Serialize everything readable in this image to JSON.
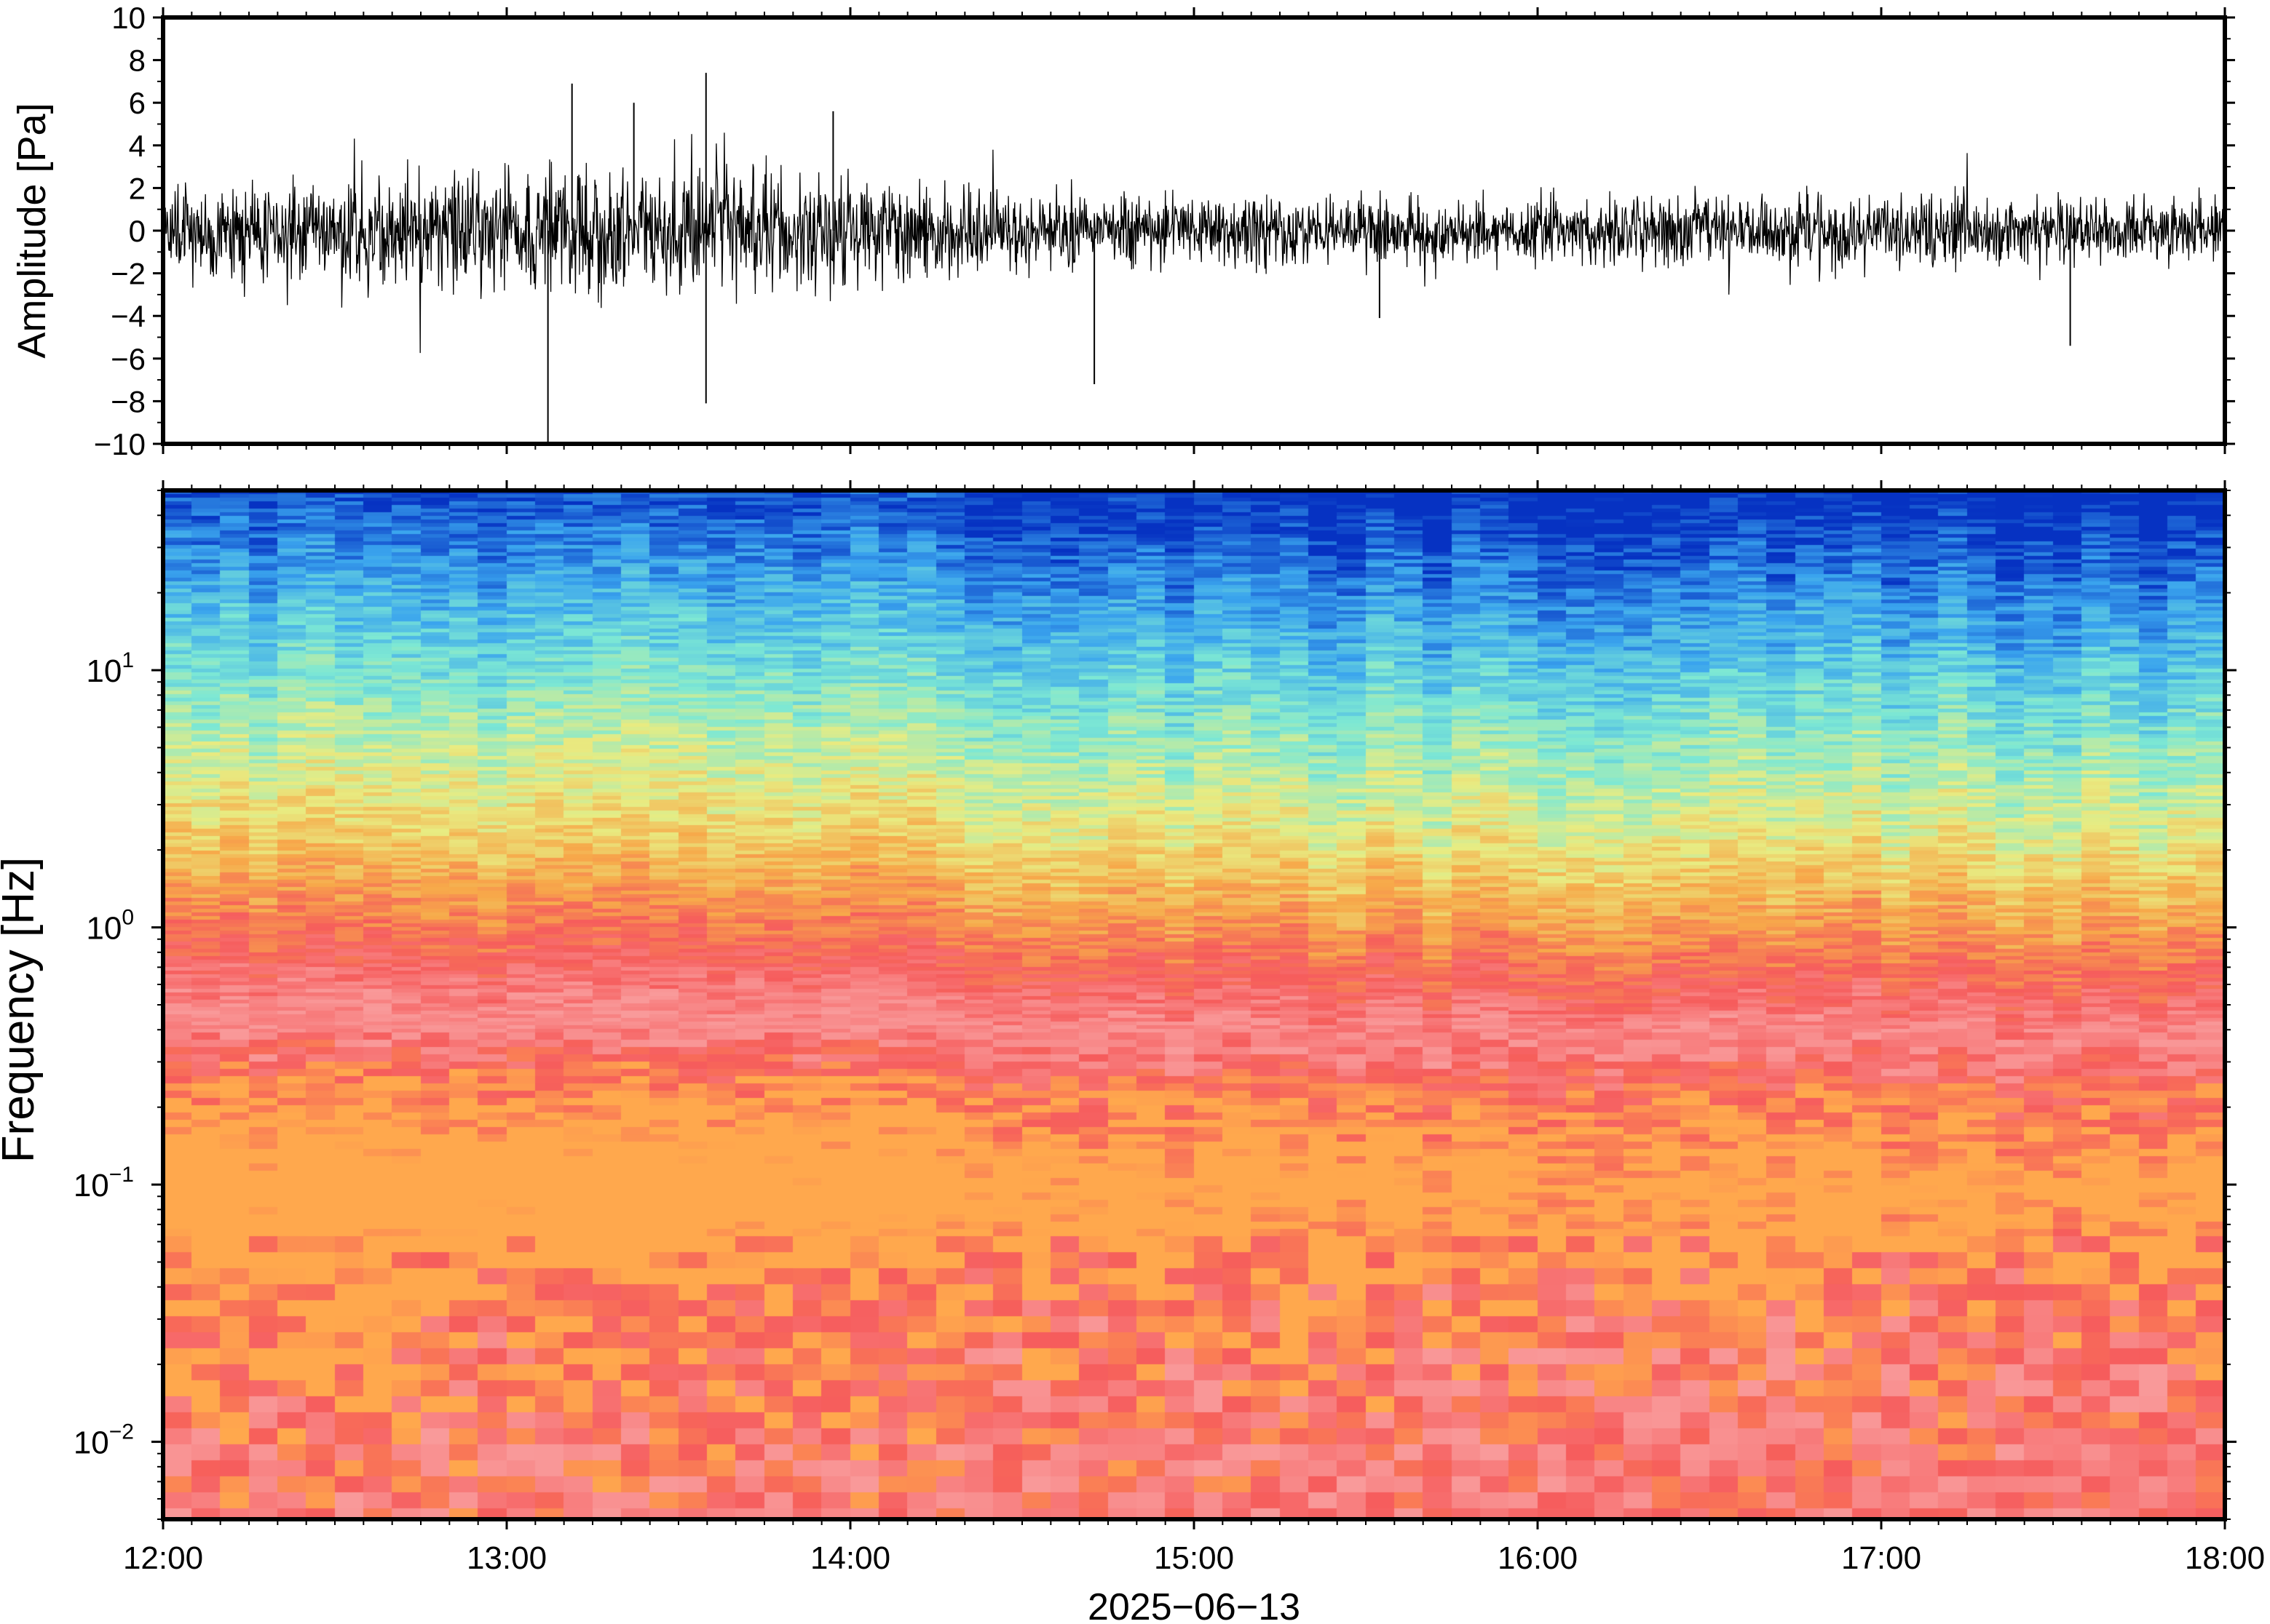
{
  "chart_data": [
    {
      "type": "line",
      "panel": "waveform",
      "ylabel": "Amplitude [Pa]",
      "ylim": [
        -10,
        10
      ],
      "yticks": [
        10,
        8,
        6,
        4,
        2,
        0,
        -2,
        -4,
        -6,
        -8,
        -10
      ],
      "ytick_labels": [
        "10",
        "8",
        "6",
        "4",
        "2",
        "0",
        "−2",
        "−4",
        "−6",
        "−8",
        "−10"
      ],
      "xlim_hours": [
        12,
        18
      ],
      "line_color": "#000000",
      "series": [
        {
          "envelope": {
            "hours": [
              12.0,
              12.5,
              13.0,
              13.5,
              14.0,
              14.5,
              15.0,
              15.5,
              16.0,
              16.5,
              17.0,
              17.5,
              18.0
            ],
            "typical_half_amplitude": [
              2.3,
              2.4,
              2.8,
              3.0,
              2.4,
              1.7,
              1.6,
              1.5,
              1.5,
              1.6,
              1.6,
              1.5,
              1.4
            ]
          },
          "spikes": [
            {
              "hour": 13.12,
              "value": -10.0
            },
            {
              "hour": 13.19,
              "value": 6.9
            },
            {
              "hour": 13.37,
              "value": 6.0
            },
            {
              "hour": 13.58,
              "value": 7.4
            },
            {
              "hour": 13.58,
              "value": -8.1
            },
            {
              "hour": 13.95,
              "value": 5.6
            },
            {
              "hour": 14.71,
              "value": -7.2
            },
            {
              "hour": 15.54,
              "value": -4.1
            },
            {
              "hour": 17.55,
              "value": -5.4
            }
          ]
        }
      ]
    },
    {
      "type": "heatmap",
      "panel": "spectrogram",
      "ylabel": "Frequency [Hz]",
      "yscale": "log",
      "ylim": [
        0.005,
        50
      ],
      "yticks": [
        {
          "value": 10,
          "base": "10",
          "exp": "1"
        },
        {
          "value": 1,
          "base": "10",
          "exp": "0"
        },
        {
          "value": 0.1,
          "base": "10",
          "exp": "−1"
        },
        {
          "value": 0.01,
          "base": "10",
          "exp": "−2"
        }
      ],
      "xlim_hours": [
        12,
        18
      ],
      "xticks": [
        "12:00",
        "13:00",
        "14:00",
        "15:00",
        "16:00",
        "17:00",
        "18:00"
      ],
      "xlabel": "2025−06−13",
      "colormap_stops": [
        "#ffa84d",
        "#f65c5c",
        "#f99a9a",
        "#f65c5c",
        "#f7a94a",
        "#e8ec82",
        "#7de8d4",
        "#3aa4ee",
        "#0632c2"
      ],
      "profile": {
        "log10_freq": [
          -2.3,
          -1.7,
          -1.5,
          -1.0,
          -0.6,
          -0.35,
          0.0,
          0.35,
          0.9,
          1.25,
          1.7
        ],
        "colormap_index": [
          0.5,
          1.0,
          1.2,
          2.0,
          1.2,
          0.0,
          -0.9,
          -1.7,
          -2.6,
          -3.2,
          -4.0
        ]
      },
      "time_variation": {
        "hours": [
          12.0,
          13.0,
          13.5,
          14.0,
          15.0,
          16.0,
          17.0,
          18.0
        ],
        "shift": [
          0.1,
          0.15,
          0.2,
          0.1,
          -0.1,
          -0.15,
          -0.15,
          -0.2
        ]
      }
    }
  ]
}
